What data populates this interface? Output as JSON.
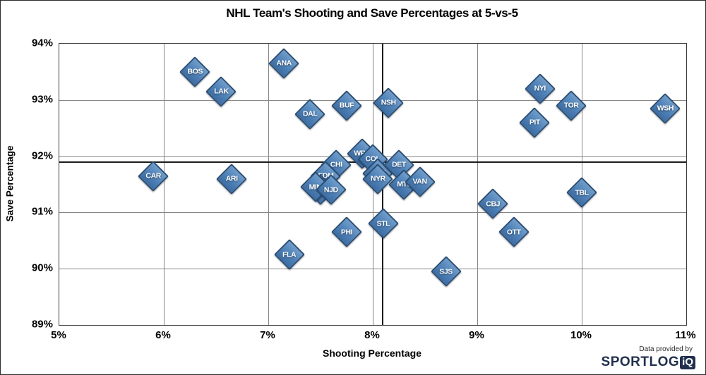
{
  "footer": {
    "credit": "Data provided by",
    "logo_text": "SPORTLOG",
    "logo_badge": "iQ"
  },
  "colors": {
    "marker_fill": "#4e81b8",
    "marker_border": "#2a4d74",
    "marker_label": "#ffffff",
    "gridline": "#868686",
    "mean_line": "#1c1c1c",
    "logo_navy": "#22304e"
  },
  "chart_data": {
    "type": "scatter",
    "title": "NHL Team's Shooting and Save Percentages at 5-vs-5",
    "xlabel": "Shooting Percentage",
    "ylabel": "Save Percentage",
    "xlim": [
      5,
      11
    ],
    "ylim": [
      89,
      94
    ],
    "grid": true,
    "legend": "none",
    "marker_shape": "diamond",
    "x_ticks": [
      {
        "label": "5%",
        "value": 5
      },
      {
        "label": "6%",
        "value": 6
      },
      {
        "label": "7%",
        "value": 7
      },
      {
        "label": "8%",
        "value": 8
      },
      {
        "label": "9%",
        "value": 9
      },
      {
        "label": "10%",
        "value": 10
      },
      {
        "label": "11%",
        "value": 11
      }
    ],
    "y_ticks": [
      {
        "label": "89%",
        "value": 89
      },
      {
        "label": "90%",
        "value": 90
      },
      {
        "label": "91%",
        "value": 91
      },
      {
        "label": "92%",
        "value": 92
      },
      {
        "label": "93%",
        "value": 93
      },
      {
        "label": "94%",
        "value": 94
      }
    ],
    "mean_lines": {
      "x": 8.09,
      "y": 91.91
    },
    "points": [
      {
        "team": "ANA",
        "x": 7.15,
        "y": 93.65
      },
      {
        "team": "BOS",
        "x": 6.3,
        "y": 93.5
      },
      {
        "team": "LAK",
        "x": 6.55,
        "y": 93.15
      },
      {
        "team": "DAL",
        "x": 7.4,
        "y": 92.75
      },
      {
        "team": "BUF",
        "x": 7.75,
        "y": 92.9
      },
      {
        "team": "NSH",
        "x": 8.15,
        "y": 92.95
      },
      {
        "team": "NYI",
        "x": 9.6,
        "y": 93.2
      },
      {
        "team": "TOR",
        "x": 9.9,
        "y": 92.9
      },
      {
        "team": "PIT",
        "x": 9.55,
        "y": 92.6
      },
      {
        "team": "WSH",
        "x": 10.8,
        "y": 92.85
      },
      {
        "team": "CAR",
        "x": 5.9,
        "y": 91.65
      },
      {
        "team": "ARI",
        "x": 6.65,
        "y": 91.6
      },
      {
        "team": "FLA",
        "x": 7.2,
        "y": 90.25
      },
      {
        "team": "PHI",
        "x": 7.75,
        "y": 90.65
      },
      {
        "team": "WPG",
        "x": 7.9,
        "y": 92.05
      },
      {
        "team": "CHI",
        "x": 7.65,
        "y": 91.85
      },
      {
        "team": "EDM",
        "x": 7.55,
        "y": 91.65
      },
      {
        "team": "VGK",
        "x": 7.5,
        "y": 91.4
      },
      {
        "team": "MIN",
        "x": 7.45,
        "y": 91.45
      },
      {
        "team": "NJD",
        "x": 7.6,
        "y": 91.4
      },
      {
        "team": "COL",
        "x": 8.0,
        "y": 91.95
      },
      {
        "team": "CGY",
        "x": 8.05,
        "y": 91.7
      },
      {
        "team": "NYR",
        "x": 8.05,
        "y": 91.6
      },
      {
        "team": "DET",
        "x": 8.25,
        "y": 91.85
      },
      {
        "team": "MTL",
        "x": 8.3,
        "y": 91.5
      },
      {
        "team": "VAN",
        "x": 8.45,
        "y": 91.55
      },
      {
        "team": "STL",
        "x": 8.1,
        "y": 90.8
      },
      {
        "team": "SJS",
        "x": 8.7,
        "y": 89.95
      },
      {
        "team": "CBJ",
        "x": 9.15,
        "y": 91.15
      },
      {
        "team": "OTT",
        "x": 9.35,
        "y": 90.65
      },
      {
        "team": "TBL",
        "x": 10.0,
        "y": 91.35
      }
    ]
  }
}
